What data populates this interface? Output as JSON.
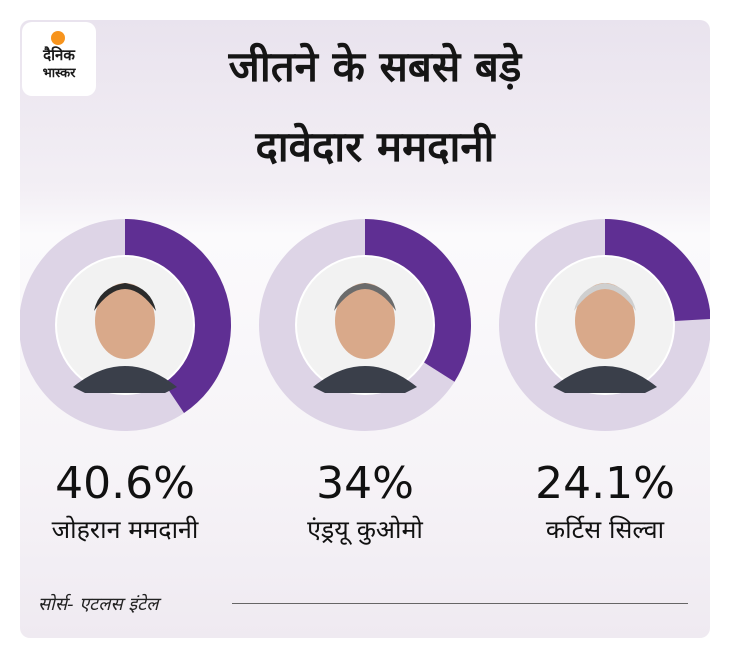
{
  "brand": {
    "logo_line1": "दैनिक",
    "logo_line2": "भास्कर",
    "logo_accent": "#f7941d"
  },
  "title": {
    "line1": "जीतने के सबसे बड़े",
    "line2": "दावेदार ममदानी"
  },
  "colors": {
    "filled": "#5f2f93",
    "track": "#ddd4e6",
    "portrait_bg": "#f2f2f2"
  },
  "chart_data": {
    "type": "pie",
    "variant": "donut",
    "title": "जीतने के सबसे बड़े दावेदार ममदानी",
    "items": [
      {
        "label": "जोहरान ममदानी",
        "value": 40.6,
        "value_label": "40.6%",
        "portrait": "portrait-photo"
      },
      {
        "label": "एंड्रयू  कुओमो",
        "value": 34,
        "value_label": "34%",
        "portrait": "portrait-photo"
      },
      {
        "label": "कर्टिस सिल्वा",
        "value": 24.1,
        "value_label": "24.1%",
        "portrait": "portrait-photo"
      }
    ],
    "max": 100
  },
  "footer": {
    "source": "सोर्स- एटलस इंटेल"
  }
}
